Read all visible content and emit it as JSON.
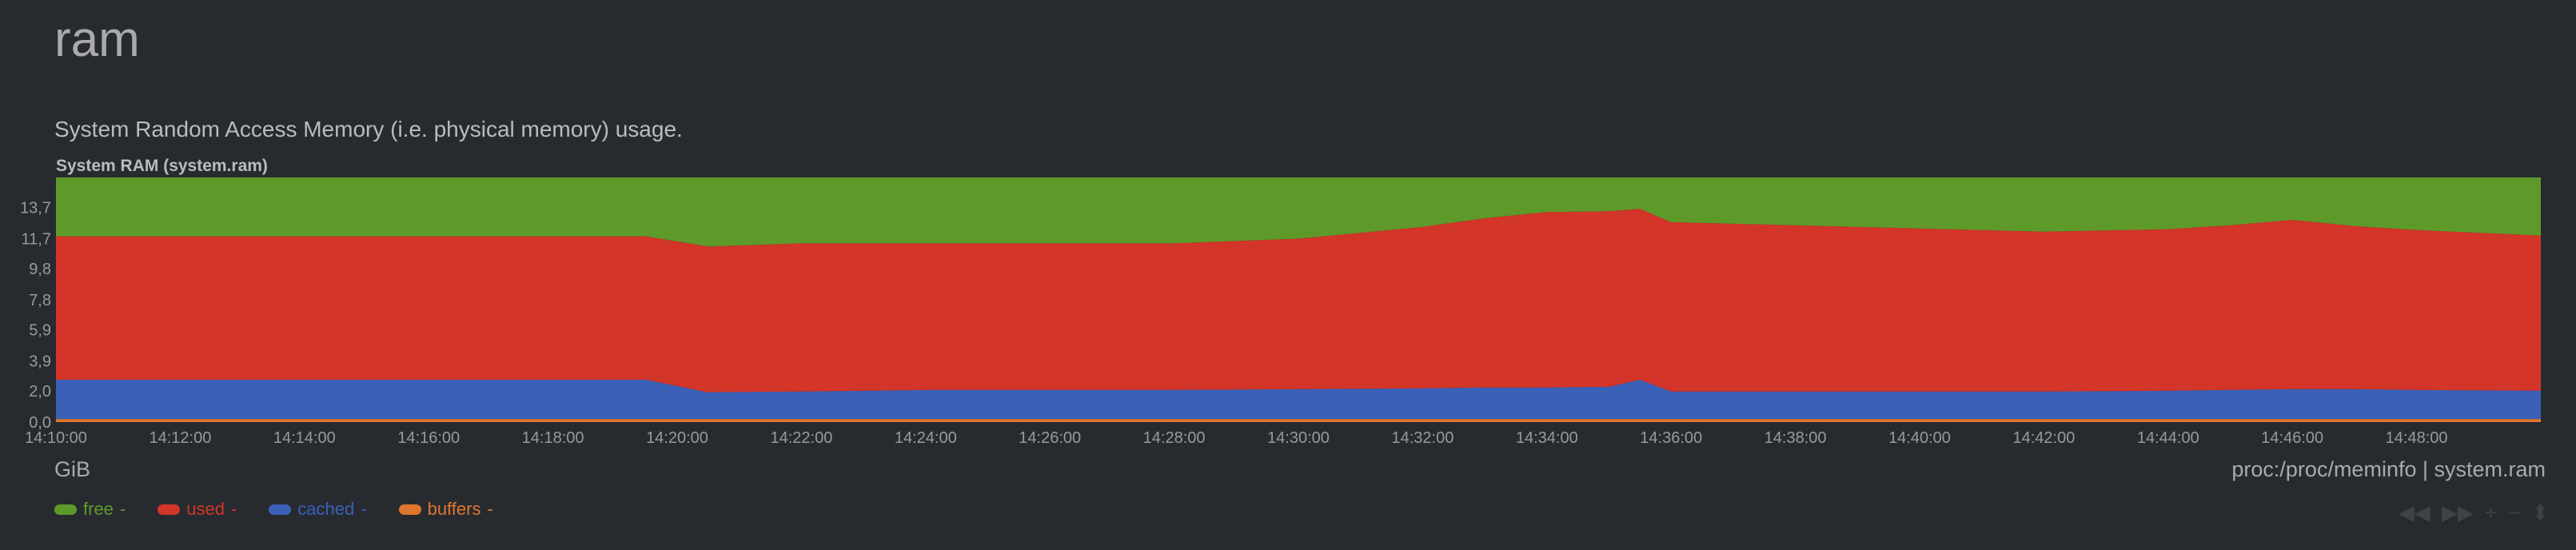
{
  "section": {
    "title": "ram",
    "description": "System Random Access Memory (i.e. physical memory) usage."
  },
  "chart": {
    "title": "System RAM (system.ram)",
    "units": "GiB",
    "source": "proc:/proc/meminfo | system.ram"
  },
  "legend": [
    {
      "name": "free",
      "value": "-",
      "color": "#5e9a2a"
    },
    {
      "name": "used",
      "value": "-",
      "color": "#d33528"
    },
    {
      "name": "cached",
      "value": "-",
      "color": "#3a60b8"
    },
    {
      "name": "buffers",
      "value": "-",
      "color": "#e0752d"
    }
  ],
  "toolbox": {
    "icons": [
      "rewind-icon",
      "fast-forward-icon",
      "zoom-in-icon",
      "zoom-out-icon",
      "resize-icon"
    ],
    "glyphs": [
      "◀◀",
      "▶▶",
      "+",
      "−",
      "⬍"
    ]
  },
  "chart_data": {
    "type": "area",
    "stacked": true,
    "title": "System RAM (system.ram)",
    "ylabel": "GiB",
    "xlabel": "",
    "ylim": [
      0,
      15.6
    ],
    "xlim": [
      "14:10:00",
      "14:50:00"
    ],
    "y_ticks": [
      "0,0",
      "2,0",
      "3,9",
      "5,9",
      "7,8",
      "9,8",
      "11,7",
      "13,7"
    ],
    "y_tick_values": [
      0,
      2.0,
      3.9,
      5.9,
      7.8,
      9.8,
      11.7,
      13.7
    ],
    "x_ticks": [
      "14:10:00",
      "14:12:00",
      "14:14:00",
      "14:16:00",
      "14:18:00",
      "14:20:00",
      "14:22:00",
      "14:24:00",
      "14:26:00",
      "14:28:00",
      "14:30:00",
      "14:32:00",
      "14:34:00",
      "14:36:00",
      "14:38:00",
      "14:40:00",
      "14:42:00",
      "14:44:00",
      "14:46:00",
      "14:48:00"
    ],
    "x": [
      "14:10:00",
      "14:12:00",
      "14:14:00",
      "14:16:00",
      "14:18:00",
      "14:19:30",
      "14:20:30",
      "14:22:00",
      "14:24:00",
      "14:26:00",
      "14:28:00",
      "14:30:00",
      "14:32:00",
      "14:33:00",
      "14:34:00",
      "14:35:00",
      "14:35:30",
      "14:36:00",
      "14:38:00",
      "14:40:00",
      "14:42:00",
      "14:44:00",
      "14:45:00",
      "14:46:00",
      "14:47:00",
      "14:48:00",
      "14:50:00"
    ],
    "series": [
      {
        "name": "buffers",
        "color": "#e0752d",
        "values": [
          0.2,
          0.2,
          0.2,
          0.2,
          0.2,
          0.2,
          0.2,
          0.2,
          0.2,
          0.2,
          0.2,
          0.2,
          0.2,
          0.2,
          0.2,
          0.2,
          0.2,
          0.2,
          0.2,
          0.2,
          0.2,
          0.2,
          0.2,
          0.2,
          0.2,
          0.2,
          0.2
        ]
      },
      {
        "name": "cached",
        "color": "#3a60b8",
        "values": [
          2.5,
          2.5,
          2.5,
          2.5,
          2.5,
          2.5,
          1.7,
          1.75,
          1.85,
          1.85,
          1.85,
          1.9,
          1.95,
          2.0,
          2.0,
          2.05,
          2.5,
          1.75,
          1.75,
          1.75,
          1.75,
          1.8,
          1.85,
          1.9,
          1.9,
          1.85,
          1.8
        ]
      },
      {
        "name": "used",
        "color": "#d33528",
        "values": [
          9.15,
          9.15,
          9.15,
          9.15,
          9.15,
          9.15,
          9.3,
          9.45,
          9.35,
          9.35,
          9.35,
          9.6,
          10.3,
          10.8,
          11.2,
          11.2,
          10.9,
          10.8,
          10.6,
          10.4,
          10.2,
          10.3,
          10.5,
          10.8,
          10.4,
          10.2,
          9.9
        ]
      },
      {
        "name": "free",
        "color": "#5e9a2a",
        "values": [
          3.75,
          3.75,
          3.75,
          3.75,
          3.75,
          3.75,
          4.4,
          4.2,
          4.2,
          4.2,
          4.2,
          3.9,
          3.15,
          2.6,
          2.2,
          2.15,
          2.0,
          2.85,
          3.05,
          3.25,
          3.45,
          3.3,
          3.05,
          2.7,
          3.1,
          3.35,
          3.7
        ]
      }
    ]
  }
}
